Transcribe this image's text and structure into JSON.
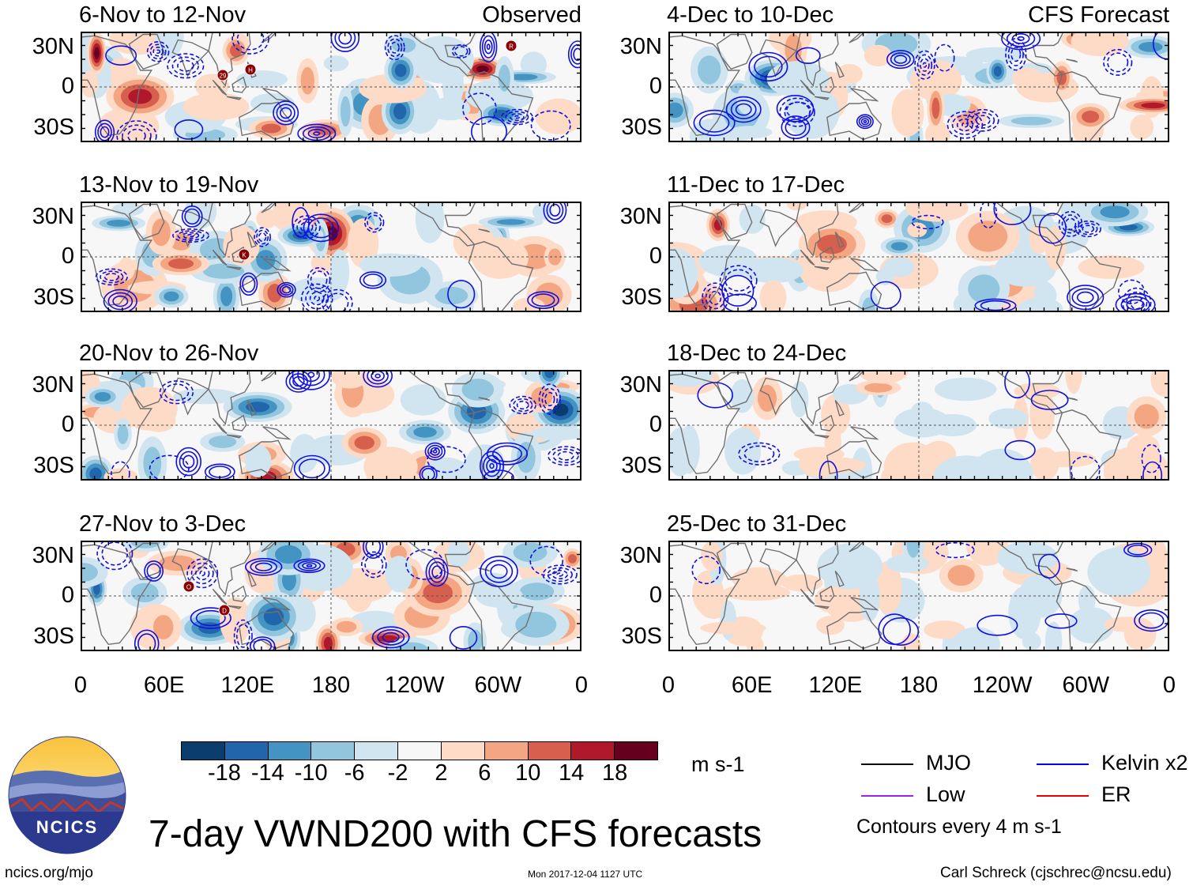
{
  "columns": {
    "observed_label": "Observed",
    "forecast_label": "CFS Forecast"
  },
  "panels": [
    {
      "id": "obs-1",
      "title": "6-Nov to 12-Nov",
      "seed": 11,
      "intensity": 1.0,
      "markers": [
        [
          "29",
          0
        ],
        [
          "H",
          1
        ],
        [
          "R",
          2
        ]
      ]
    },
    {
      "id": "obs-2",
      "title": "13-Nov to 19-Nov",
      "seed": 23,
      "intensity": 1.0,
      "markers": [
        [
          "K",
          3
        ]
      ]
    },
    {
      "id": "obs-3",
      "title": "20-Nov to 26-Nov",
      "seed": 37,
      "intensity": 1.0,
      "markers": []
    },
    {
      "id": "obs-4",
      "title": "27-Nov to 3-Dec",
      "seed": 41,
      "intensity": 1.0,
      "markers": [
        [
          "O",
          4
        ],
        [
          "D",
          5
        ]
      ]
    },
    {
      "id": "fc-1",
      "title": "4-Dec to 10-Dec",
      "seed": 53,
      "intensity": 1.0,
      "markers": []
    },
    {
      "id": "fc-2",
      "title": "11-Dec to 17-Dec",
      "seed": 67,
      "intensity": 0.9,
      "markers": []
    },
    {
      "id": "fc-3",
      "title": "18-Dec to 24-Dec",
      "seed": 79,
      "intensity": 0.35,
      "markers": []
    },
    {
      "id": "fc-4",
      "title": "25-Dec to 31-Dec",
      "seed": 83,
      "intensity": 0.3,
      "markers": []
    }
  ],
  "axes": {
    "lat_ticks": [
      "30N",
      "0",
      "30S"
    ],
    "lon_ticks": [
      "0",
      "60E",
      "120E",
      "180",
      "120W",
      "60W",
      "0"
    ]
  },
  "colorbar": {
    "colors": [
      "#0b3c6e",
      "#2166ac",
      "#4393c3",
      "#92c5de",
      "#d1e5f0",
      "#f7f7f7",
      "#fddbc7",
      "#f4a582",
      "#d6604d",
      "#b2182b",
      "#67001f"
    ],
    "tick_labels": [
      "-18",
      "-14",
      "-10",
      "-6",
      "-2",
      "2",
      "6",
      "10",
      "14",
      "18"
    ],
    "units": "m s-1"
  },
  "legend": [
    {
      "label": "MJO",
      "color": "#000000"
    },
    {
      "label": "Kelvin x2",
      "color": "#0000ee"
    },
    {
      "label": "Low",
      "color": "#a020f0"
    },
    {
      "label": "ER",
      "color": "#ee0000"
    }
  ],
  "contour_note": "Contours every 4 m s-1",
  "title": "7-day VWND200 with CFS forecasts",
  "logo_text": "NCICS",
  "footer": {
    "url": "ncics.org/mjo",
    "date": "Mon 2017-12-04 1127 UTC",
    "author": "Carl Schreck (cjschrec@ncsu.edu)"
  }
}
